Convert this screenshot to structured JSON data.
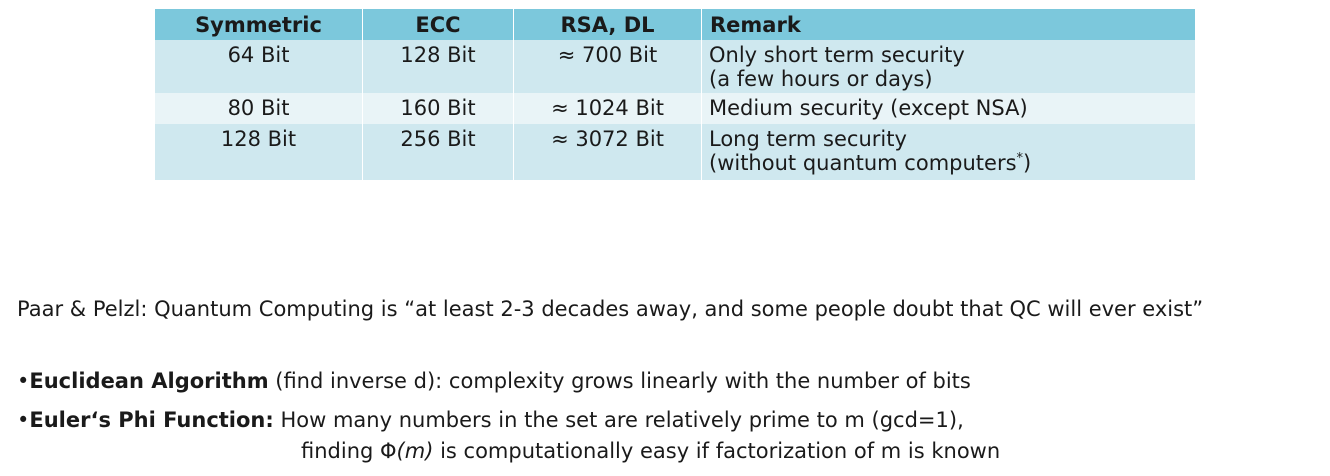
{
  "table": {
    "headers": [
      "Symmetric",
      "ECC",
      "RSA, DL",
      "Remark"
    ],
    "rows": [
      {
        "symmetric": "64 Bit",
        "ecc": "128 Bit",
        "rsa": "≈ 700 Bit",
        "remark_line1": "Only short term security",
        "remark_line2": "(a few hours or days)",
        "remark_sup": ""
      },
      {
        "symmetric": "80 Bit",
        "ecc": "160 Bit",
        "rsa": "≈ 1024 Bit",
        "remark_line1": "Medium security (except NSA)",
        "remark_line2": "",
        "remark_sup": ""
      },
      {
        "symmetric": "128 Bit",
        "ecc": "256 Bit",
        "rsa": "≈ 3072 Bit",
        "remark_line1": "Long term security",
        "remark_line2": "(without quantum computers",
        "remark_sup": "*",
        "remark_close": ")"
      }
    ]
  },
  "quote": "Paar & Pelzl: Quantum Computing is “at least 2-3 decades away, and some people doubt that QC will ever exist”",
  "bullets": {
    "marker": "•",
    "euclid_term": "Euclidean Algorithm",
    "euclid_text": " (find inverse d): complexity grows linearly with the number of bits",
    "euler_term": "Euler‘s Phi Function:",
    "euler_text": " How many numbers in the set are relatively prime to m (gcd=1),",
    "euler_cont_pre": "finding Φ",
    "euler_cont_arg": "(m)",
    "euler_cont_post": " is computationally easy if factorization of m is known"
  }
}
